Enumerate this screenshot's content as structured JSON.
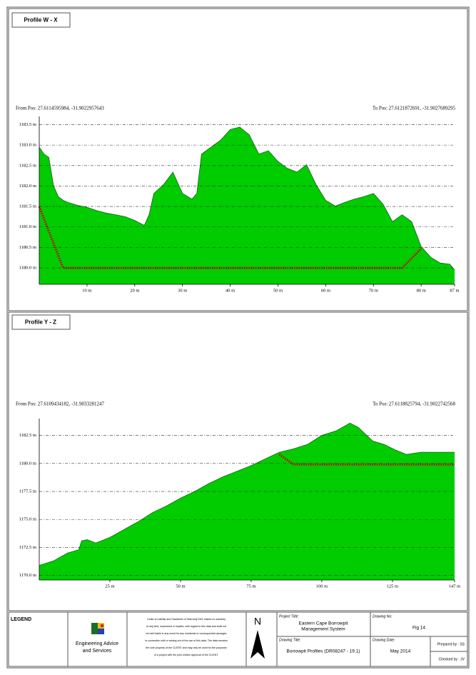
{
  "chart_data": [
    {
      "type": "area",
      "title": "Profile W - X",
      "from_pos": "From Pos: 27.6114595984, -31.9022957643",
      "to_pos": "To Pos: 27.6121872691, -31.9027689295",
      "xlim": [
        0,
        87
      ],
      "xticks": [
        {
          "value": 10,
          "label": "10 m"
        },
        {
          "value": 20,
          "label": "20 m"
        },
        {
          "value": 30,
          "label": "30 m"
        },
        {
          "value": 40,
          "label": "40 m"
        },
        {
          "value": 50,
          "label": "50 m"
        },
        {
          "value": 60,
          "label": "60 m"
        },
        {
          "value": 70,
          "label": "70 m"
        },
        {
          "value": 80,
          "label": "80 m"
        },
        {
          "value": 87,
          "label": "87 m"
        }
      ],
      "ylim": [
        1179.6,
        1183.7
      ],
      "yticks": [
        {
          "value": 1180.0,
          "label": "1180.0 m"
        },
        {
          "value": 1180.5,
          "label": "1180.5 m"
        },
        {
          "value": 1181.0,
          "label": "1181.0 m"
        },
        {
          "value": 1181.5,
          "label": "1181.5 m"
        },
        {
          "value": 1182.0,
          "label": "1182.0 m"
        },
        {
          "value": 1182.5,
          "label": "1182.5 m"
        },
        {
          "value": 1183.0,
          "label": "1183.0 m"
        },
        {
          "value": 1183.5,
          "label": "1183.5 m"
        }
      ],
      "grid": true,
      "series": [
        {
          "type": "area",
          "color": "#00cc00",
          "x": [
            0,
            1,
            2,
            3,
            4,
            5,
            6,
            8,
            10,
            12,
            14,
            16,
            18,
            20,
            22,
            23,
            24,
            26,
            28,
            29,
            30,
            32,
            33,
            34,
            36,
            38,
            40,
            42,
            44,
            46,
            48,
            50,
            52,
            54,
            56,
            58,
            60,
            62,
            64,
            66,
            68,
            70,
            72,
            74,
            76,
            78,
            80,
            82,
            84,
            86,
            87
          ],
          "values": [
            1182.95,
            1182.78,
            1182.7,
            1182.0,
            1181.74,
            1181.65,
            1181.6,
            1181.53,
            1181.48,
            1181.4,
            1181.34,
            1181.3,
            1181.25,
            1181.16,
            1181.04,
            1181.3,
            1181.82,
            1182.03,
            1182.34,
            1182.08,
            1181.82,
            1181.68,
            1181.82,
            1182.78,
            1182.95,
            1183.12,
            1183.38,
            1183.44,
            1183.25,
            1182.78,
            1182.86,
            1182.6,
            1182.43,
            1182.34,
            1182.52,
            1182.03,
            1181.65,
            1181.51,
            1181.6,
            1181.68,
            1181.74,
            1181.82,
            1181.56,
            1181.13,
            1181.3,
            1181.13,
            1180.52,
            1180.26,
            1180.12,
            1180.09,
            1179.95
          ]
        },
        {
          "type": "line",
          "linestyle": "dotted",
          "color": "#cc0000",
          "x": [
            0,
            5,
            76,
            80
          ],
          "values": [
            1181.5,
            1180.0,
            1180.0,
            1180.47
          ]
        }
      ]
    },
    {
      "type": "area",
      "title": "Profile Y - Z",
      "from_pos": "From Pos: 27.6109434182, -31.9033281247",
      "to_pos": "To Pos: 27.6118825794, -31.9022742568",
      "xlim": [
        0,
        147
      ],
      "xticks": [
        {
          "value": 25,
          "label": "25 m"
        },
        {
          "value": 50,
          "label": "50 m"
        },
        {
          "value": 75,
          "label": "75 m"
        },
        {
          "value": 100,
          "label": "100 m"
        },
        {
          "value": 125,
          "label": "125 m"
        },
        {
          "value": 147,
          "label": "147 m"
        }
      ],
      "ylim": [
        1169.6,
        1184.0
      ],
      "yticks": [
        {
          "value": 1170.0,
          "label": "1170.0 m"
        },
        {
          "value": 1172.5,
          "label": "1172.5 m"
        },
        {
          "value": 1175.0,
          "label": "1175.0 m"
        },
        {
          "value": 1177.5,
          "label": "1177.5 m"
        },
        {
          "value": 1180.0,
          "label": "1180.0 m"
        },
        {
          "value": 1182.5,
          "label": "1182.5 m"
        }
      ],
      "grid": true,
      "series": [
        {
          "type": "area",
          "color": "#00cc00",
          "x": [
            0,
            5,
            10,
            14,
            15,
            17,
            20,
            25,
            30,
            35,
            40,
            45,
            50,
            55,
            60,
            65,
            70,
            75,
            80,
            85,
            90,
            95,
            100,
            105,
            110,
            113,
            118,
            122,
            126,
            130,
            135,
            140,
            147
          ],
          "values": [
            1170.9,
            1171.3,
            1172.0,
            1172.3,
            1173.1,
            1173.2,
            1172.9,
            1173.4,
            1174.1,
            1174.8,
            1175.6,
            1176.2,
            1176.9,
            1177.5,
            1178.2,
            1178.8,
            1179.3,
            1179.8,
            1180.4,
            1181.0,
            1181.3,
            1181.7,
            1182.5,
            1182.9,
            1183.6,
            1183.2,
            1182.0,
            1181.7,
            1181.2,
            1180.8,
            1181.0,
            1181.0,
            1181.0
          ]
        },
        {
          "type": "line",
          "linestyle": "dotted",
          "color": "#cc0000",
          "x": [
            85,
            90,
            147
          ],
          "values": [
            1180.8,
            1179.9,
            1179.9
          ]
        }
      ]
    }
  ],
  "legend_title": "LEGEND",
  "company": [
    "Engineering Advice",
    "and Services"
  ],
  "disclaimer": [
    "Limits of Liability and Disclaimer of Warranty EAS makes no warranty",
    "of any kind, expressed or implied, with regard to this data and shall not",
    "be held liable in any event for any incidental or consequential damages",
    "in connection with or arising out of the use of this data. The data remains",
    "the sole property of the CLIENT and may only be used for the purposes",
    "of a project with the prior written approval of the CLIENT."
  ],
  "north": "N",
  "project_title_label": "Project Title:",
  "project_title": [
    "Eastern Cape Borrowpit",
    "Management System"
  ],
  "drawing_title_label": "Drawing Title:",
  "drawing_title": "Borrowpit Profiles (DR08247 - 19.1)",
  "drawing_no_label": "Drawing No:",
  "drawing_no": "Fig 14",
  "drawing_date_label": "Drawing Date:",
  "drawing_date": "May 2014",
  "prepared_by": "Prepared by : SS",
  "checked_by": "Checked by : JV"
}
